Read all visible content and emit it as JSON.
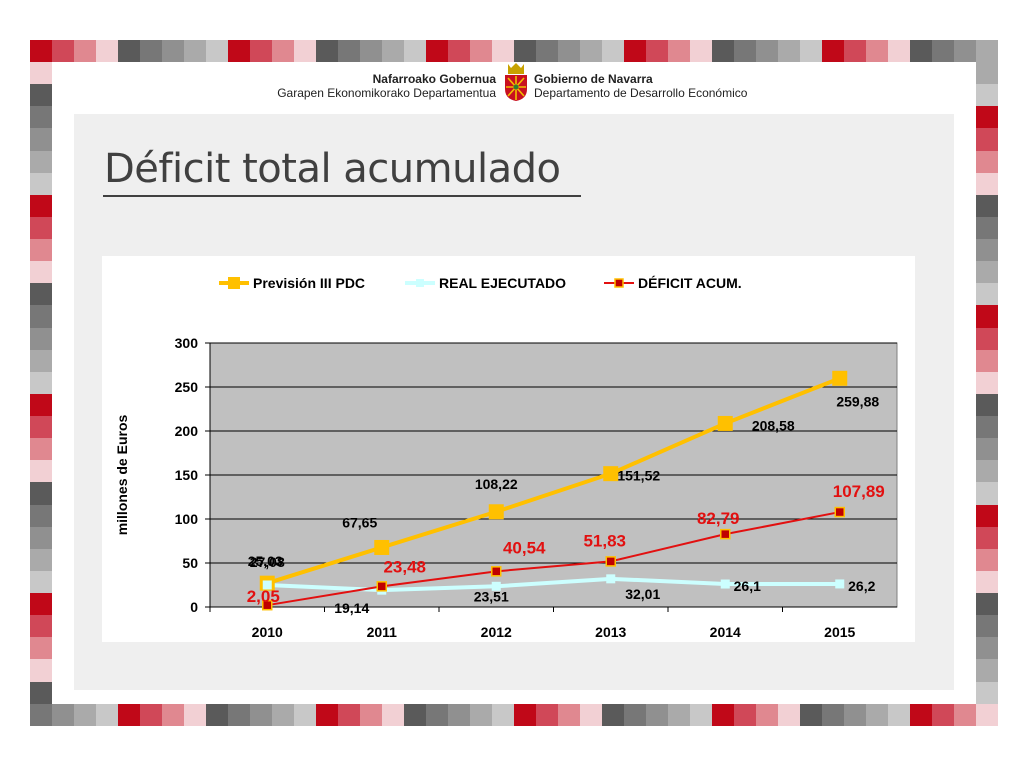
{
  "header": {
    "left_line1": "Nafarroako Gobernua",
    "left_line2": "Garapen Ekonomikorako Departamentua",
    "right_line1": "Gobierno de Navarra",
    "right_line2": "Departamento de Desarrollo Económico",
    "crest_icon": "navarra-coat-of-arms-icon"
  },
  "title": "Déficit total acumulado",
  "colors": {
    "red": "#d0102a",
    "prevision": "#ffc000",
    "real": "#ccffff",
    "deficit": "#e21010",
    "plot_bg": "#c0c0c0",
    "panel_bg": "#efefef"
  },
  "chart_data": {
    "type": "line",
    "categories": [
      "2010",
      "2011",
      "2012",
      "2013",
      "2014",
      "2015"
    ],
    "ylabel": "millones de Euros",
    "ylim": [
      0,
      300
    ],
    "yticks": [
      "0",
      "50",
      "100",
      "150",
      "200",
      "250",
      "300"
    ],
    "grid": true,
    "legend_position": "top",
    "series": [
      {
        "name": "Previsión III PDC",
        "values": [
          27.08,
          67.65,
          108.22,
          151.52,
          208.58,
          259.88
        ],
        "labels": [
          "27,08",
          "67,65",
          "108,22",
          "151,52",
          "208,58",
          "259,88"
        ]
      },
      {
        "name": "REAL EJECUTADO",
        "values": [
          25.03,
          19.14,
          23.51,
          32.01,
          26.1,
          26.2
        ],
        "labels": [
          "25,03",
          "19,14",
          "23,51",
          "32,01",
          "26,1",
          "26,2"
        ]
      },
      {
        "name": "DÉFICIT ACUM.",
        "values": [
          2.05,
          23.48,
          40.54,
          51.83,
          82.79,
          107.89
        ],
        "labels": [
          "2,05",
          "23,48",
          "40,54",
          "51,83",
          "82,79",
          "107,89"
        ]
      }
    ]
  }
}
